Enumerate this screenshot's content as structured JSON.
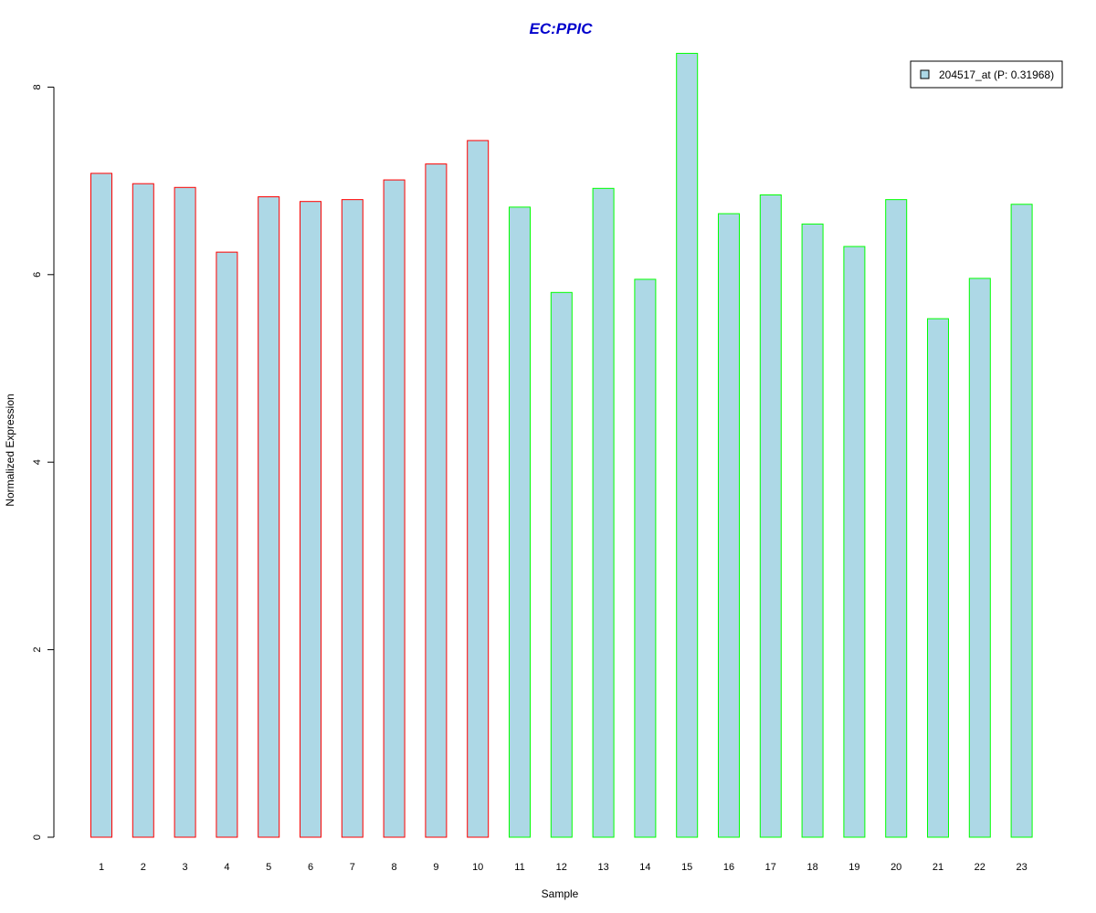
{
  "chart_data": {
    "type": "bar",
    "title": "EC:PPIC",
    "xlabel": "Sample",
    "ylabel": "Normalized Expression",
    "categories": [
      "1",
      "2",
      "3",
      "4",
      "5",
      "6",
      "7",
      "8",
      "9",
      "10",
      "11",
      "12",
      "13",
      "14",
      "15",
      "16",
      "17",
      "18",
      "19",
      "20",
      "21",
      "22",
      "23"
    ],
    "values": [
      7.08,
      6.97,
      6.93,
      6.24,
      6.83,
      6.78,
      6.8,
      7.01,
      7.18,
      7.43,
      6.72,
      5.81,
      6.92,
      5.95,
      8.36,
      6.65,
      6.85,
      6.54,
      6.3,
      6.8,
      5.53,
      5.96,
      6.75
    ],
    "groups": [
      "red",
      "red",
      "red",
      "red",
      "red",
      "red",
      "red",
      "red",
      "red",
      "red",
      "green",
      "green",
      "green",
      "green",
      "green",
      "green",
      "green",
      "green",
      "green",
      "green",
      "green",
      "green",
      "green"
    ],
    "ylim": [
      0,
      8.4
    ],
    "yticks": [
      0,
      2,
      4,
      6,
      8
    ],
    "legend": {
      "label": "204517_at (P: 0.31968)",
      "position": "top-right"
    },
    "colors": {
      "bar_fill": "#ADD8E6",
      "red_outline": "#FF0000",
      "green_outline": "#00FF00",
      "title": "#0000CC",
      "axis": "#000000"
    }
  }
}
